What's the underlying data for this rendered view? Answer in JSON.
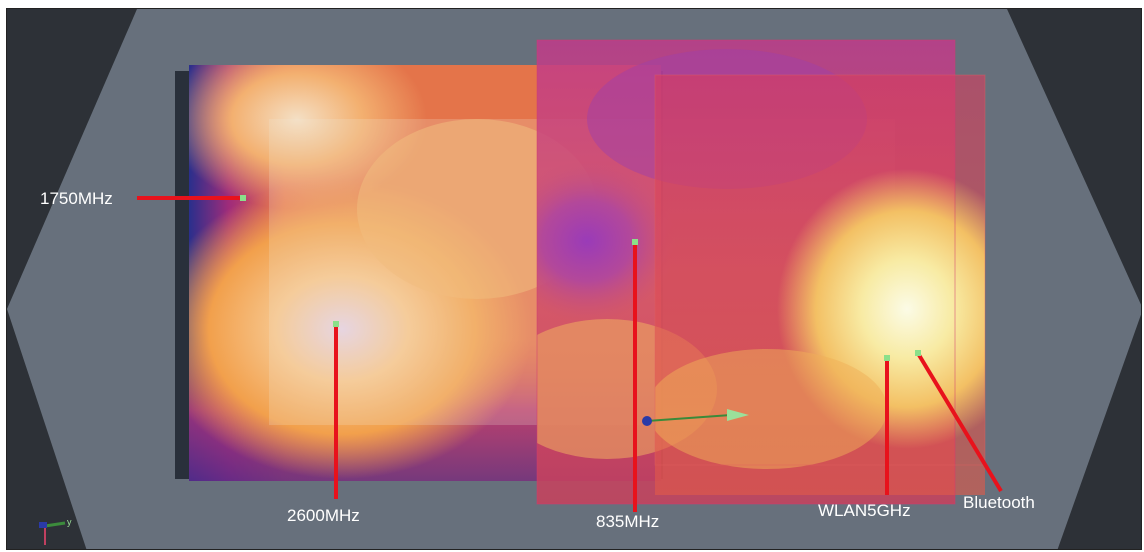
{
  "labels": {
    "l1750": "1750MHz",
    "l2600": "2600MHz",
    "l835": "835MHz",
    "lwlan": "WLAN5GHz",
    "lbt": "Bluetooth"
  },
  "axis_triad": {
    "y_label": "y"
  },
  "colors": {
    "background_dark": "#2d3137",
    "phantom": "#6a7480",
    "leader_line": "#e8121c",
    "probe_point": "#8be08a"
  }
}
